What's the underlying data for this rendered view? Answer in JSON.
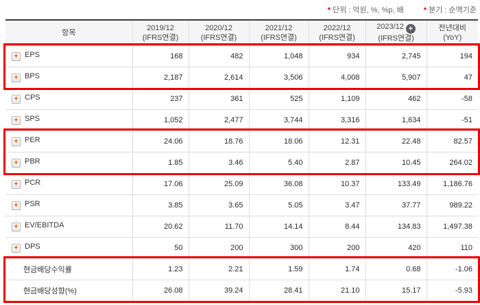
{
  "notes": {
    "marker": "*",
    "unit_label": "단위 : 억원, %, %p, 배",
    "basis_label": "분기 : 순액기준"
  },
  "table": {
    "item_header": "항목",
    "columns": [
      {
        "period": "2019/12",
        "basis": "(IFRS연결)",
        "has_plus_icon": false
      },
      {
        "period": "2020/12",
        "basis": "(IFRS연결)",
        "has_plus_icon": false
      },
      {
        "period": "2021/12",
        "basis": "(IFRS연결)",
        "has_plus_icon": false
      },
      {
        "period": "2022/12",
        "basis": "(IFRS연결)",
        "has_plus_icon": false
      },
      {
        "period": "2023/12",
        "basis": "(IFRS연결)",
        "has_plus_icon": true
      },
      {
        "period": "전년대비",
        "basis": "(YoY)",
        "has_plus_icon": false
      }
    ],
    "expand_icon_glyph": "+",
    "rows": [
      {
        "label": "EPS",
        "expandable": true,
        "values": [
          "168",
          "482",
          "1,048",
          "934",
          "2,745",
          "194"
        ]
      },
      {
        "label": "BPS",
        "expandable": true,
        "values": [
          "2,187",
          "2,614",
          "3,506",
          "4,008",
          "5,907",
          "47"
        ]
      },
      {
        "label": "CPS",
        "expandable": true,
        "values": [
          "237",
          "361",
          "525",
          "1,109",
          "462",
          "-58"
        ]
      },
      {
        "label": "SPS",
        "expandable": true,
        "values": [
          "1,052",
          "2,477",
          "3,744",
          "3,316",
          "1,634",
          "-51"
        ]
      },
      {
        "label": "PER",
        "expandable": true,
        "values": [
          "24.06",
          "18.76",
          "18.06",
          "12.31",
          "22.48",
          "82.57"
        ]
      },
      {
        "label": "PBR",
        "expandable": true,
        "values": [
          "1.85",
          "3.46",
          "5.40",
          "2.87",
          "10.45",
          "264.02"
        ]
      },
      {
        "label": "PCR",
        "expandable": true,
        "values": [
          "17.06",
          "25.09",
          "36.08",
          "10.37",
          "133.49",
          "1,186.76"
        ]
      },
      {
        "label": "PSR",
        "expandable": true,
        "values": [
          "3.85",
          "3.65",
          "5.05",
          "3.47",
          "37.77",
          "989.22"
        ]
      },
      {
        "label": "EV/EBITDA",
        "expandable": true,
        "values": [
          "20.62",
          "11.70",
          "14.14",
          "8.44",
          "134.83",
          "1,497.38"
        ]
      },
      {
        "label": "DPS",
        "expandable": true,
        "values": [
          "50",
          "200",
          "300",
          "200",
          "420",
          "110"
        ]
      },
      {
        "label": "현금배당수익률",
        "expandable": false,
        "values": [
          "1.23",
          "2.21",
          "1.59",
          "1.74",
          "0.68",
          "-1.06"
        ]
      },
      {
        "label": "현금배당성향(%)",
        "expandable": false,
        "values": [
          "26.08",
          "39.24",
          "28.41",
          "21.10",
          "15.17",
          "-5.93"
        ]
      }
    ],
    "highlighted_row_groups": [
      [
        "EPS",
        "BPS"
      ],
      [
        "PER",
        "PBR"
      ],
      [
        "현금배당수익률",
        "현금배당성향(%)"
      ]
    ]
  },
  "colors": {
    "negative_value": "#e60000",
    "highlight_border": "#ee0000",
    "expand_icon_orange": "#f25c05",
    "header_background": "#f5f5f5",
    "table_top_border": "#3c3c3c"
  }
}
